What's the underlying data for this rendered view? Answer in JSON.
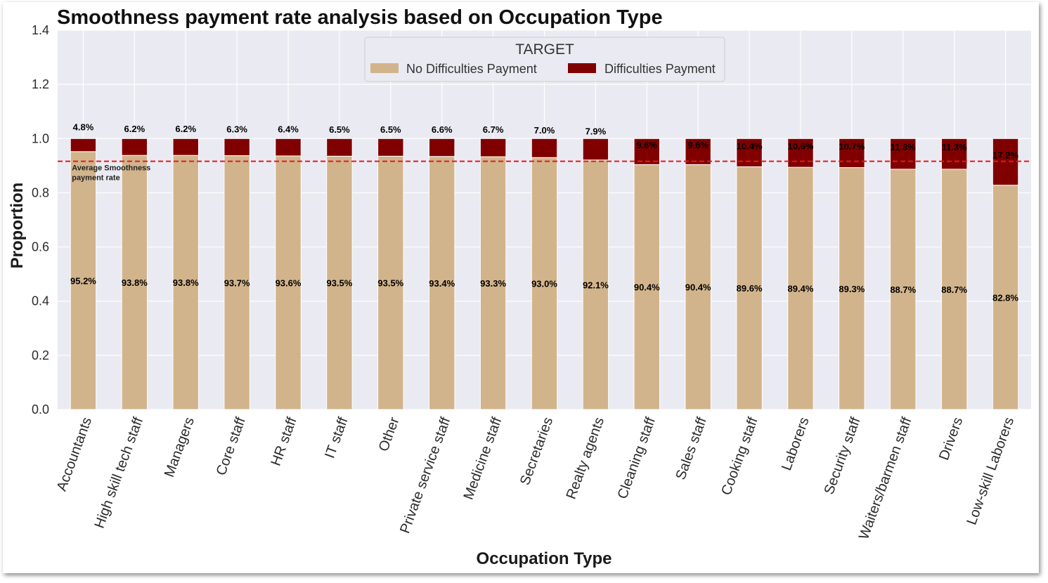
{
  "chart_data": {
    "type": "bar",
    "stacked": true,
    "title": "Smoothness payment rate analysis based on Occupation Type",
    "xlabel": "Occupation Type",
    "ylabel": "Proportion",
    "ylim": [
      0,
      1.4
    ],
    "yticks": [
      "0.0",
      "0.2",
      "0.4",
      "0.6",
      "0.8",
      "1.0",
      "1.2",
      "1.4"
    ],
    "grid": true,
    "categories": [
      "Accountants",
      "High skill tech staff",
      "Managers",
      "Core staff",
      "HR staff",
      "IT staff",
      "Other",
      "Private service staff",
      "Medicine staff",
      "Secretaries",
      "Realty agents",
      "Cleaning staff",
      "Sales staff",
      "Cooking staff",
      "Laborers",
      "Security staff",
      "Waiters/barmen staff",
      "Drivers",
      "Low-skill Laborers"
    ],
    "series": [
      {
        "name": "No Difficulties Payment",
        "color": "#d2b48c",
        "values": [
          0.952,
          0.938,
          0.938,
          0.937,
          0.936,
          0.935,
          0.935,
          0.934,
          0.933,
          0.93,
          0.921,
          0.904,
          0.904,
          0.896,
          0.894,
          0.893,
          0.887,
          0.887,
          0.828
        ],
        "labels": [
          "95.2%",
          "93.8%",
          "93.8%",
          "93.7%",
          "93.6%",
          "93.5%",
          "93.5%",
          "93.4%",
          "93.3%",
          "93.0%",
          "92.1%",
          "90.4%",
          "90.4%",
          "89.6%",
          "89.4%",
          "89.3%",
          "88.7%",
          "88.7%",
          "82.8%"
        ]
      },
      {
        "name": "Difficulties Payment",
        "color": "#800000",
        "values": [
          0.048,
          0.062,
          0.062,
          0.063,
          0.064,
          0.065,
          0.065,
          0.066,
          0.067,
          0.07,
          0.079,
          0.096,
          0.096,
          0.104,
          0.106,
          0.107,
          0.113,
          0.113,
          0.172
        ],
        "labels": [
          "4.8%",
          "6.2%",
          "6.2%",
          "6.3%",
          "6.4%",
          "6.5%",
          "6.5%",
          "6.6%",
          "6.7%",
          "7.0%",
          "7.9%",
          "9.6%",
          "9.6%",
          "10.4%",
          "10.6%",
          "10.7%",
          "11.3%",
          "11.3%",
          "17.2%"
        ]
      }
    ],
    "legend": {
      "title": "TARGET",
      "position": "top-center"
    },
    "reference_line": {
      "value": 0.916,
      "color": "#e41a1c",
      "style": "dashed",
      "label_line1": "Average Smoothness",
      "label_line2": "payment rate"
    }
  }
}
